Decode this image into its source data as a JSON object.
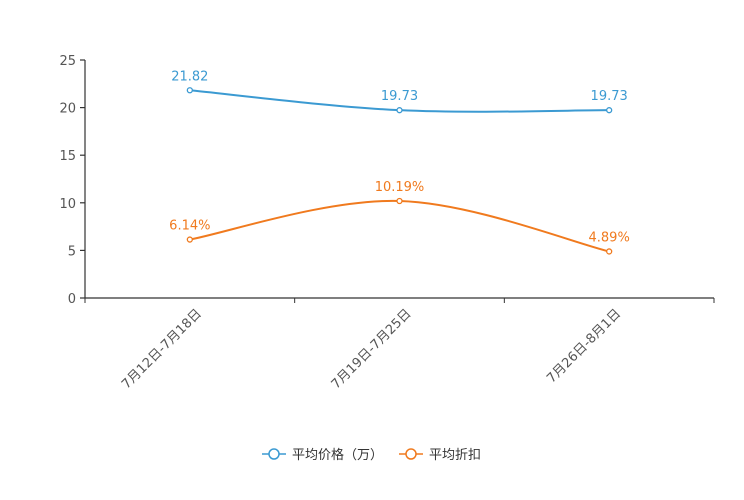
{
  "chart_data": {
    "type": "line",
    "categories": [
      "7月12日-7月18日",
      "7月19日-7月25日",
      "7月26日-8月1日"
    ],
    "series": [
      {
        "name": "平均价格（万）",
        "values": [
          21.82,
          19.73,
          19.73
        ],
        "labels": [
          "21.82",
          "19.73",
          "19.73"
        ],
        "color": "#3b9ad2"
      },
      {
        "name": "平均折扣",
        "values": [
          6.14,
          10.19,
          4.89
        ],
        "labels": [
          "6.14%",
          "10.19%",
          "4.89%"
        ],
        "color": "#f07a1e"
      }
    ],
    "ylim": [
      0,
      25
    ],
    "yticks": [
      0,
      5,
      10,
      15,
      20,
      25
    ],
    "title": "",
    "xlabel": "",
    "ylabel": "",
    "legend_position": "bottom-center",
    "grid": false
  },
  "colors": {
    "axis": "#333333",
    "tick_text": "#555555"
  }
}
